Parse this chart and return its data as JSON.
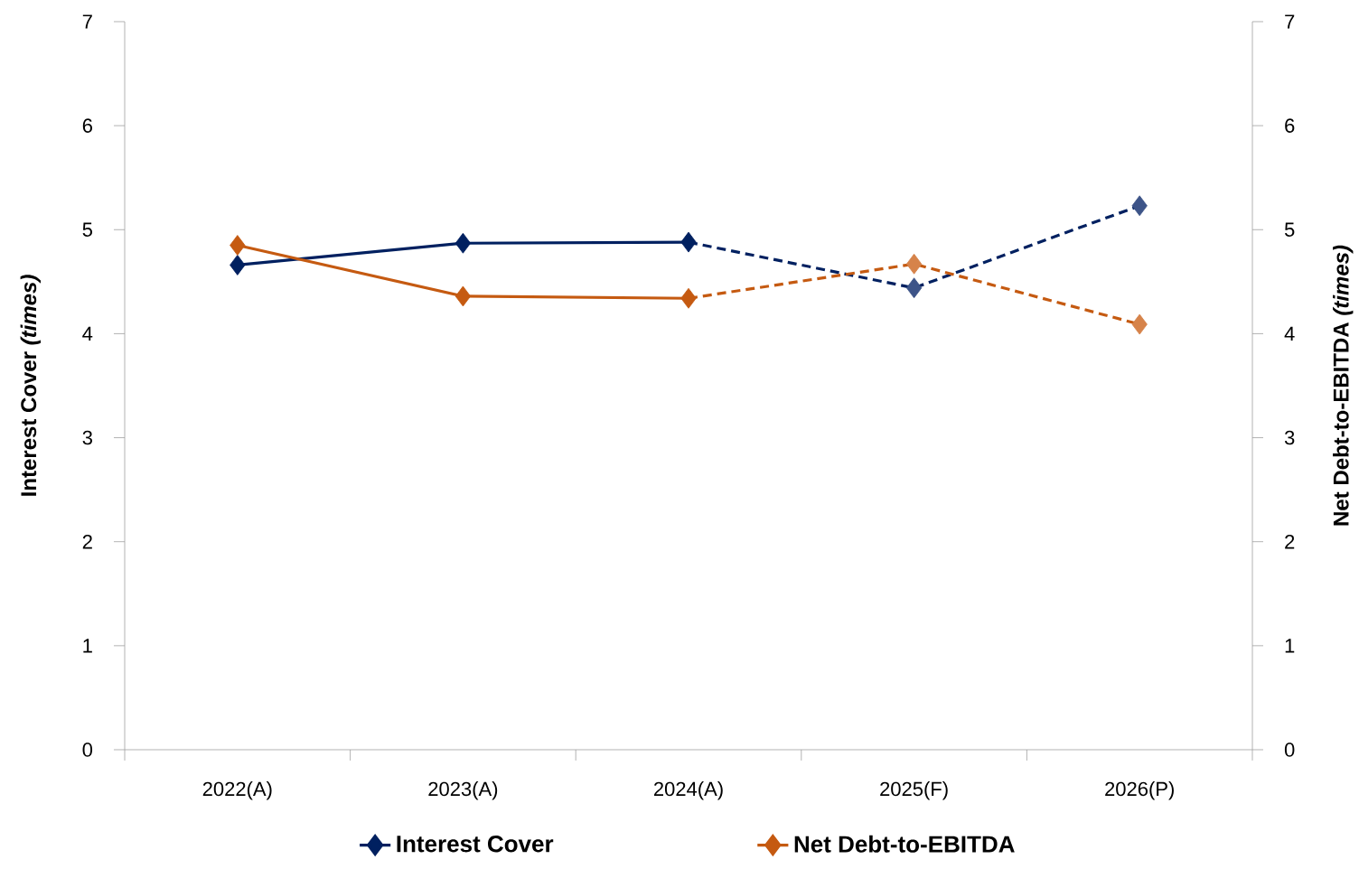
{
  "chart_data": {
    "type": "line",
    "categories": [
      "2022(A)",
      "2023(A)",
      "2024(A)",
      "2025(F)",
      "2026(P)"
    ],
    "ylabel": "Interest Cover *(times)*",
    "y2label": "Net Debt-to-EBITDA *(times)*",
    "ylim": [
      0,
      7
    ],
    "yticks": [
      0,
      1,
      2,
      3,
      4,
      5,
      6,
      7
    ],
    "y2lim": [
      0,
      7
    ],
    "y2ticks": [
      0,
      1,
      2,
      3,
      4,
      5,
      6,
      7
    ],
    "marker": "diamond",
    "legend": "bottom",
    "grid": false,
    "series": [
      {
        "name": "Interest Cover",
        "color": "#002060",
        "line_style": "solid",
        "values": [
          4.66,
          4.87,
          4.88,
          null,
          null
        ]
      },
      {
        "color": "#002060",
        "line_style": "dashed",
        "values": [
          null,
          null,
          4.88,
          4.44,
          5.23
        ],
        "colors": [
          null,
          null,
          null,
          "#3d5488",
          "#3d5488"
        ]
      },
      {
        "name": "Net Debt-to-EBITDA",
        "color": "#c55a11",
        "line_style": "solid",
        "axis": "y2",
        "values": [
          4.85,
          4.36,
          4.34,
          null,
          null
        ]
      },
      {
        "color": "#c55a11",
        "line_style": "dashed",
        "axis": "y2",
        "values": [
          null,
          null,
          4.34,
          4.67,
          4.09
        ],
        "colors": [
          null,
          null,
          null,
          "#d6834a",
          "#d6834a"
        ]
      }
    ]
  }
}
